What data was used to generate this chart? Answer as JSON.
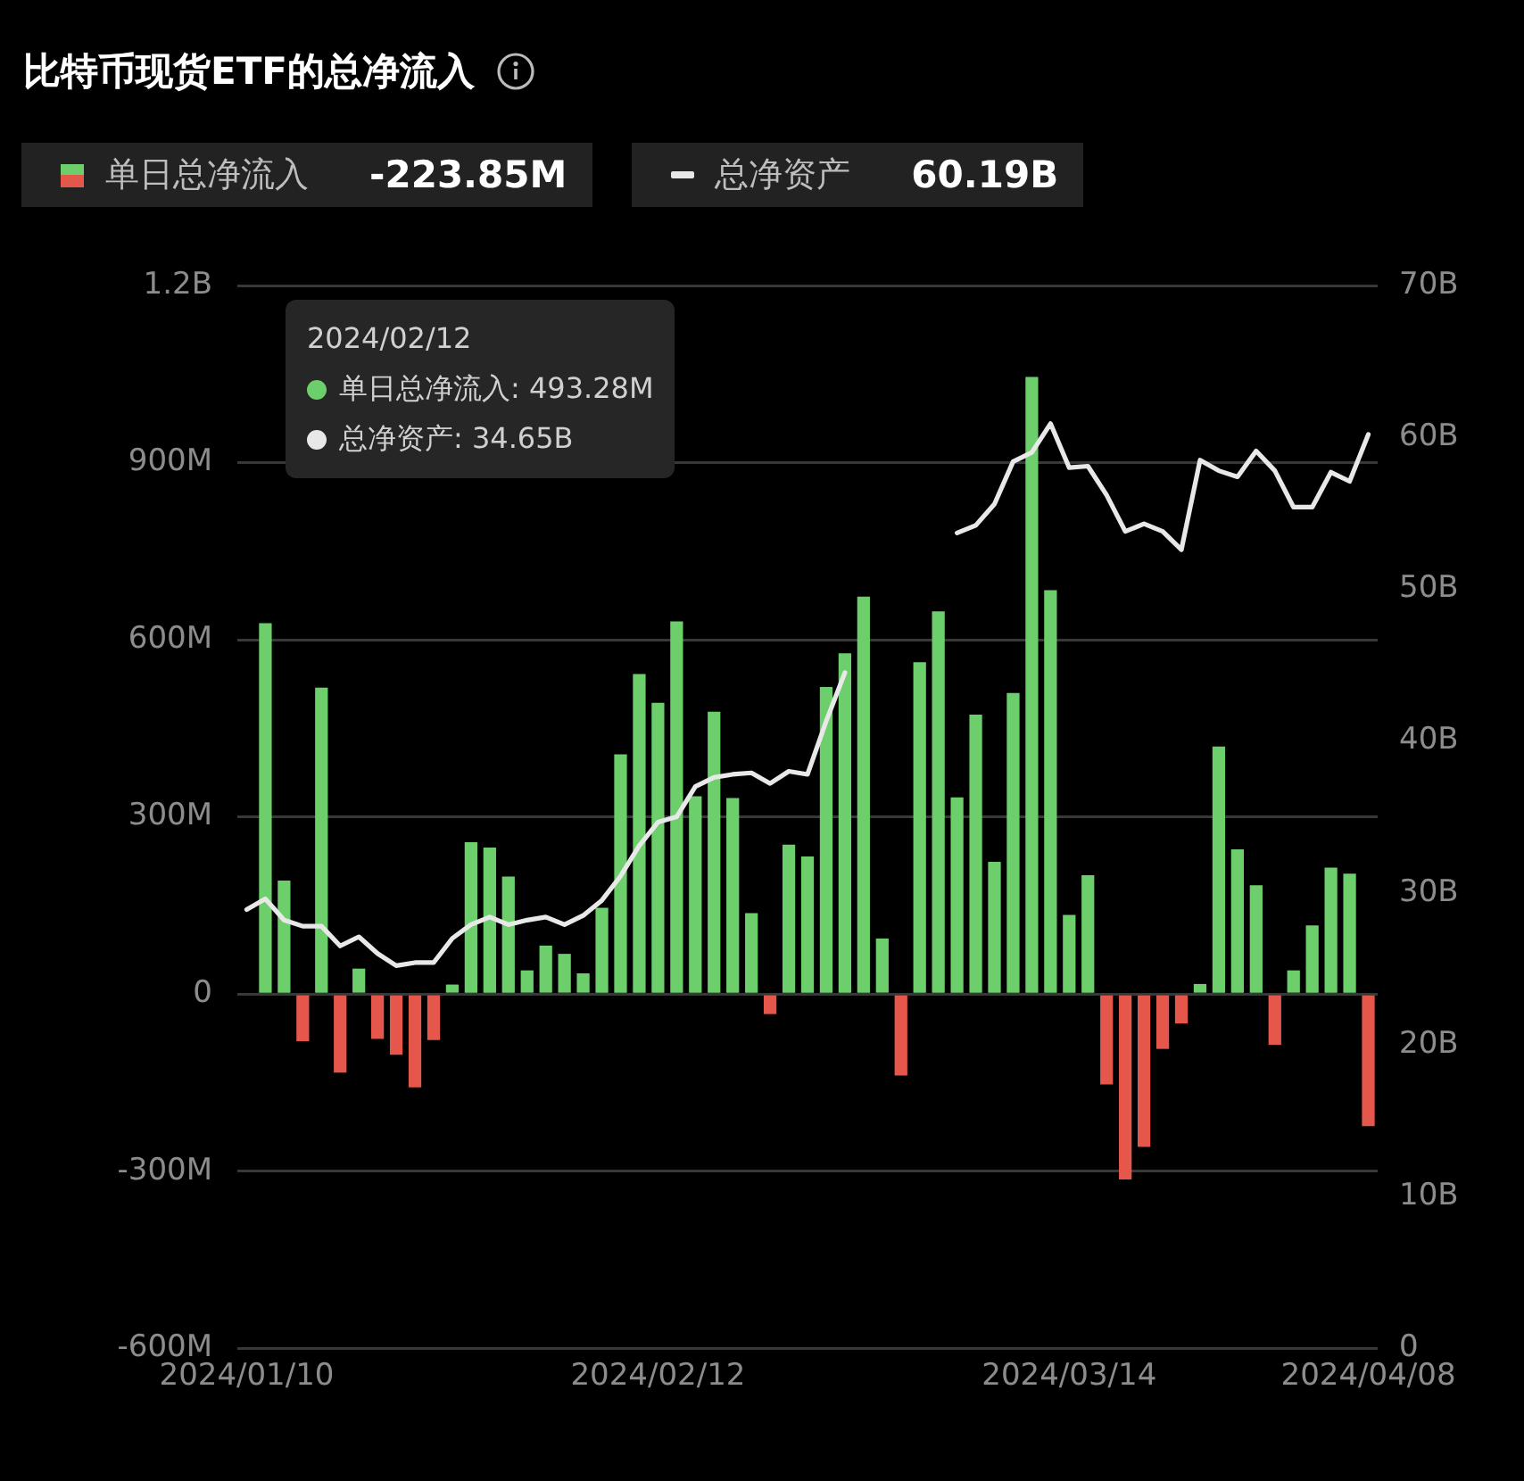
{
  "chart_data": {
    "type": "bar",
    "title": "比特币现货ETF的总净流入",
    "categories": [
      "2024/01/10",
      null,
      null,
      null,
      null,
      null,
      null,
      null,
      null,
      null,
      null,
      null,
      null,
      null,
      null,
      null,
      null,
      null,
      null,
      null,
      null,
      null,
      "2024/02/12",
      null,
      null,
      null,
      null,
      null,
      null,
      null,
      null,
      null,
      null,
      null,
      null,
      null,
      null,
      null,
      null,
      null,
      null,
      null,
      null,
      null,
      "2024/03/14",
      null,
      null,
      null,
      null,
      null,
      null,
      null,
      null,
      null,
      null,
      null,
      null,
      null,
      null,
      null,
      "2024/04/08"
    ],
    "series": [
      {
        "name": "单日总净流入",
        "color": "#6dcf6b",
        "values": [
          null,
          628000000,
          192000000,
          -80000000,
          519000000,
          -133000000,
          43000000,
          -76000000,
          -103000000,
          -158000000,
          -78000000,
          16000000,
          257000000,
          248000000,
          199000000,
          40000000,
          82000000,
          68000000,
          35000000,
          146000000,
          406000000,
          542000000,
          493280000,
          631000000,
          335000000,
          478000000,
          332000000,
          137000000,
          -34000000,
          253000000,
          233000000,
          520000000,
          577000000,
          673000000,
          94000000,
          -138000000,
          562000000,
          648000000,
          333000000,
          473000000,
          224000000,
          510000000,
          1045000000,
          684000000,
          134000000,
          201000000,
          -153000000,
          -314000000,
          -259000000,
          -93000000,
          -50000000,
          17000000,
          419000000,
          245000000,
          184000000,
          -86000000,
          40000000,
          116000000,
          214000000,
          204000000,
          -223850000
        ],
        "colors": [
          "#6dcf6b",
          "#6dcf6b",
          "#6dcf6b",
          "#e5574b",
          "#6dcf6b",
          "#e5574b",
          "#6dcf6b",
          "#e5574b",
          "#e5574b",
          "#e5574b",
          "#e5574b",
          "#6dcf6b",
          "#6dcf6b",
          "#6dcf6b",
          "#6dcf6b",
          "#6dcf6b",
          "#6dcf6b",
          "#6dcf6b",
          "#6dcf6b",
          "#6dcf6b",
          "#6dcf6b",
          "#6dcf6b",
          "#6dcf6b",
          "#6dcf6b",
          "#6dcf6b",
          "#6dcf6b",
          "#6dcf6b",
          "#6dcf6b",
          "#e5574b",
          "#6dcf6b",
          "#6dcf6b",
          "#6dcf6b",
          "#6dcf6b",
          "#6dcf6b",
          "#6dcf6b",
          "#e5574b",
          "#6dcf6b",
          "#6dcf6b",
          "#6dcf6b",
          "#6dcf6b",
          "#6dcf6b",
          "#6dcf6b",
          "#6dcf6b",
          "#6dcf6b",
          "#6dcf6b",
          "#6dcf6b",
          "#e5574b",
          "#e5574b",
          "#e5574b",
          "#e5574b",
          "#e5574b",
          "#6dcf6b",
          "#6dcf6b",
          "#6dcf6b",
          "#6dcf6b",
          "#e5574b",
          "#6dcf6b",
          "#6dcf6b",
          "#6dcf6b",
          "#6dcf6b",
          "#e5574b"
        ]
      },
      {
        "name": "总净资产",
        "type": "line",
        "axis": "y2",
        "color": "#e8e8e8",
        "values": [
          28900000000,
          29600000000,
          28200000000,
          27800000000,
          27800000000,
          26500000000,
          27100000000,
          26000000000,
          25200000000,
          25400000000,
          25400000000,
          27000000000,
          27900000000,
          28400000000,
          27900000000,
          28200000000,
          28400000000,
          27900000000,
          28500000000,
          29500000000,
          31100000000,
          33100000000,
          34650000000,
          35000000000,
          37000000000,
          37600000000,
          37800000000,
          37900000000,
          37200000000,
          38000000000,
          37800000000,
          41300000000,
          44500000000,
          null,
          null,
          null,
          null,
          null,
          53700000000,
          54200000000,
          55600000000,
          58400000000,
          59000000000,
          60900000000,
          58000000000,
          58100000000,
          56200000000,
          53800000000,
          54300000000,
          53800000000,
          52600000000,
          58500000000,
          57800000000,
          57400000000,
          59100000000,
          57800000000,
          55400000000,
          55400000000,
          57700000000,
          57100000000,
          60190000000
        ]
      }
    ],
    "ylim": [
      -600000000,
      1200000000
    ],
    "yticks": [
      {
        "value": -600000000,
        "label": "-600M"
      },
      {
        "value": -300000000,
        "label": "-300M"
      },
      0,
      {
        "value": 300000000,
        "label": "300M"
      },
      {
        "value": 600000000,
        "label": "600M"
      },
      {
        "value": 900000000,
        "label": "900M"
      },
      {
        "value": 1200000000,
        "label": "1.2B"
      }
    ],
    "y2lim": [
      0,
      70000000000
    ],
    "y2ticks": [
      0,
      {
        "value": 10000000000,
        "label": "10B"
      },
      {
        "value": 20000000000,
        "label": "20B"
      },
      {
        "value": 30000000000,
        "label": "30B"
      },
      {
        "value": 40000000000,
        "label": "40B"
      },
      {
        "value": 50000000000,
        "label": "50B"
      },
      {
        "value": 60000000000,
        "label": "60B"
      },
      {
        "value": 70000000000,
        "label": "70B"
      }
    ],
    "grid": "y",
    "legend": "top left",
    "marker": "none",
    "annotations": [
      "-223.85M",
      "60.19B",
      "2024/02/12",
      "单日总净流入: 493.28M",
      "总净资产: 34.65B"
    ]
  }
}
